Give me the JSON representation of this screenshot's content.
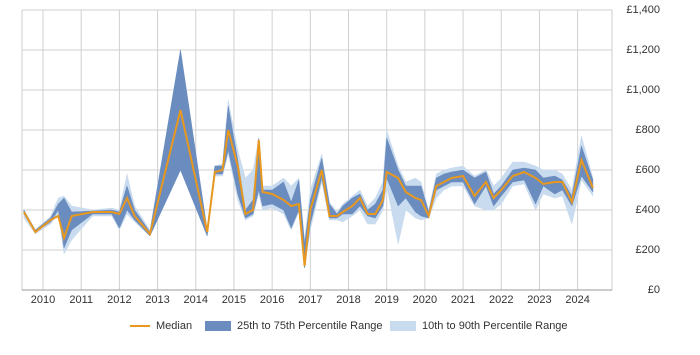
{
  "chart_data": {
    "type": "line",
    "xlim": [
      2009.45,
      2024.9
    ],
    "xticks": [
      2010,
      2011,
      2012,
      2013,
      2014,
      2015,
      2016,
      2017,
      2018,
      2019,
      2020,
      2021,
      2022,
      2023,
      2024
    ],
    "ylim": [
      0,
      1400
    ],
    "yticks": [
      {
        "value": 0,
        "label": "£0"
      },
      {
        "value": 200,
        "label": "£200"
      },
      {
        "value": 400,
        "label": "£400"
      },
      {
        "value": 600,
        "label": "£600"
      },
      {
        "value": 800,
        "label": "£800"
      },
      {
        "value": 1000,
        "label": "£1,000"
      },
      {
        "value": 1200,
        "label": "£1,200"
      },
      {
        "value": 1400,
        "label": "£1,400"
      }
    ],
    "grid": true,
    "x": [
      2009.5,
      2009.8,
      2010.2,
      2010.4,
      2010.55,
      2010.75,
      2011.3,
      2011.8,
      2012.0,
      2012.2,
      2012.4,
      2012.8,
      2013.6,
      2014.3,
      2014.5,
      2014.7,
      2014.85,
      2015.1,
      2015.3,
      2015.5,
      2015.65,
      2015.75,
      2016.0,
      2016.3,
      2016.5,
      2016.7,
      2016.85,
      2017.0,
      2017.3,
      2017.5,
      2017.7,
      2017.85,
      2018.1,
      2018.3,
      2018.5,
      2018.7,
      2018.9,
      2019.0,
      2019.3,
      2019.5,
      2019.75,
      2019.9,
      2020.1,
      2020.3,
      2020.5,
      2020.7,
      2021.0,
      2021.3,
      2021.6,
      2021.8,
      2022.0,
      2022.3,
      2022.6,
      2022.9,
      2023.1,
      2023.4,
      2023.6,
      2023.85,
      2024.1,
      2024.4
    ],
    "series": [
      {
        "name": "10th to 90th Percentile Range",
        "color": "#c9dbee",
        "band": true,
        "lower": [
          360,
          280,
          330,
          380,
          180,
          250,
          370,
          370,
          300,
          380,
          340,
          270,
          600,
          270,
          570,
          570,
          680,
          450,
          350,
          370,
          480,
          400,
          410,
          380,
          300,
          390,
          110,
          300,
          540,
          350,
          350,
          340,
          370,
          400,
          330,
          330,
          400,
          520,
          230,
          400,
          360,
          350,
          360,
          460,
          500,
          520,
          520,
          420,
          400,
          400,
          430,
          520,
          530,
          400,
          480,
          460,
          470,
          330,
          550,
          470
        ],
        "upper": [
          400,
          300,
          370,
          460,
          470,
          420,
          400,
          410,
          400,
          580,
          420,
          300,
          1200,
          300,
          620,
          630,
          950,
          700,
          560,
          600,
          760,
          520,
          520,
          560,
          520,
          560,
          250,
          500,
          680,
          440,
          390,
          430,
          470,
          500,
          420,
          460,
          540,
          800,
          620,
          540,
          560,
          540,
          400,
          580,
          600,
          610,
          620,
          570,
          600,
          520,
          560,
          640,
          640,
          620,
          600,
          600,
          580,
          500,
          770,
          560
        ]
      },
      {
        "name": "25th to 75th Percentile Range",
        "color": "#6a8cbf",
        "band": true,
        "lower": [
          380,
          290,
          340,
          400,
          210,
          300,
          380,
          380,
          310,
          400,
          350,
          270,
          600,
          270,
          580,
          580,
          700,
          480,
          360,
          380,
          500,
          420,
          430,
          400,
          310,
          400,
          110,
          330,
          560,
          360,
          360,
          380,
          380,
          420,
          370,
          360,
          420,
          560,
          420,
          460,
          390,
          370,
          360,
          500,
          520,
          540,
          540,
          430,
          520,
          420,
          470,
          540,
          550,
          430,
          520,
          480,
          500,
          420,
          570,
          490
        ],
        "upper": [
          400,
          300,
          360,
          430,
          460,
          390,
          395,
          400,
          390,
          520,
          400,
          290,
          1200,
          300,
          620,
          620,
          920,
          650,
          400,
          450,
          760,
          500,
          500,
          540,
          440,
          550,
          230,
          450,
          660,
          430,
          380,
          420,
          460,
          480,
          400,
          430,
          500,
          760,
          600,
          520,
          520,
          520,
          390,
          560,
          580,
          590,
          600,
          560,
          590,
          480,
          520,
          600,
          610,
          600,
          560,
          570,
          550,
          470,
          720,
          550
        ]
      },
      {
        "name": "Median",
        "color": "#e8981e",
        "values": [
          390,
          290,
          350,
          370,
          260,
          370,
          390,
          390,
          380,
          460,
          370,
          280,
          900,
          290,
          590,
          600,
          800,
          620,
          380,
          400,
          750,
          490,
          480,
          450,
          420,
          430,
          120,
          400,
          600,
          370,
          370,
          390,
          420,
          460,
          380,
          380,
          450,
          590,
          560,
          490,
          460,
          450,
          370,
          520,
          540,
          560,
          570,
          470,
          540,
          460,
          500,
          570,
          590,
          560,
          530,
          540,
          540,
          440,
          650,
          510
        ]
      }
    ]
  }
}
